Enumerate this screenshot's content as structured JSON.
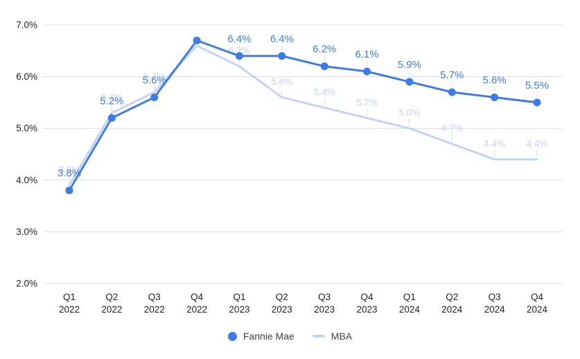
{
  "chart_data": {
    "type": "line",
    "categories": [
      "Q1 2022",
      "Q2 2022",
      "Q3 2022",
      "Q4 2022",
      "Q1 2023",
      "Q2 2023",
      "Q3 2023",
      "Q4 2023",
      "Q1 2024",
      "Q2 2024",
      "Q3 2024",
      "Q4 2024"
    ],
    "series": [
      {
        "name": "Fannie Mae",
        "color": "#3d7be5",
        "label_color": "#3d7be5",
        "has_points": true,
        "values": [
          3.8,
          5.2,
          5.6,
          6.7,
          6.4,
          6.4,
          6.2,
          6.1,
          5.9,
          5.7,
          5.6,
          5.5
        ],
        "data_labels": [
          "3.8%",
          "5.2%",
          "5.6%",
          null,
          "6.4%",
          "6.4%",
          "6.2%",
          "6.1%",
          "5.9%",
          "5.7%",
          "5.6%",
          "5.5%"
        ]
      },
      {
        "name": "MBA",
        "color": "#c3d4f0",
        "label_color": "#c3d4f0",
        "has_points": false,
        "values": [
          3.9,
          5.3,
          5.7,
          6.6,
          6.2,
          5.6,
          5.4,
          5.2,
          5.0,
          4.7,
          4.4,
          4.4
        ],
        "data_labels": [
          "3.9%",
          "5.3%",
          "5.7%",
          null,
          "6.2%",
          "5.6%",
          "5.4%",
          "5.2%",
          "5.0%",
          "4.7%",
          "4.4%",
          "4.4%"
        ]
      }
    ],
    "y_axis": {
      "min": 2.0,
      "max": 7.0,
      "step": 1.0,
      "tick_labels": [
        "2.0%",
        "3.0%",
        "4.0%",
        "5.0%",
        "6.0%",
        "7.0%"
      ]
    },
    "grid": true,
    "legend_position": "bottom"
  },
  "legend": {
    "fannie_label": "Fannie Mae",
    "mba_label": "MBA"
  },
  "colors": {
    "fannie": "#3d7be5",
    "mba": "#c3d4f0",
    "grid": "#dadce0",
    "leader": "#dadce0",
    "axis_text": "#202124",
    "legend_text": "#3c4043",
    "background": "#ffffff"
  }
}
